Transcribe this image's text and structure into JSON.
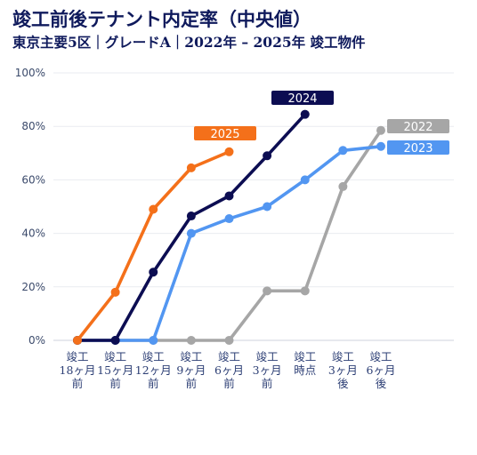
{
  "header": {
    "title": "竣工前後テナント内定率（中央値）",
    "subtitle": "東京主要5区｜グレードA｜2022年 – 2025年 竣工物件"
  },
  "chart_data": {
    "type": "line",
    "title": "竣工前後テナント内定率（中央値）",
    "subtitle": "東京主要5区｜グレードA｜2022年 – 2025年 竣工物件",
    "xlabel": "",
    "ylabel": "",
    "categories": [
      [
        "竣工",
        "18ヶ月",
        "前"
      ],
      [
        "竣工",
        "15ヶ月",
        "前"
      ],
      [
        "竣工",
        "12ヶ月",
        "前"
      ],
      [
        "竣工",
        "9ヶ月",
        "前"
      ],
      [
        "竣工",
        "6ヶ月",
        "前"
      ],
      [
        "竣工",
        "3ヶ月",
        "前"
      ],
      [
        "竣工",
        "時点"
      ],
      [
        "竣工",
        "3ヶ月",
        "後"
      ],
      [
        "竣工",
        "6ヶ月",
        "後"
      ]
    ],
    "y_ticks": [
      "0%",
      "20%",
      "40%",
      "60%",
      "80%",
      "100%"
    ],
    "ylim": [
      0,
      100
    ],
    "grid": true,
    "legend": "direct labels",
    "series": [
      {
        "name": "2022",
        "color": "#a6a6a6",
        "values": [
          0,
          0,
          0,
          0,
          0,
          18.5,
          18.5,
          57.5,
          78.5
        ]
      },
      {
        "name": "2023",
        "color": "#5296f1",
        "values": [
          0,
          0,
          0,
          40,
          45.5,
          50,
          60,
          71,
          72.5
        ]
      },
      {
        "name": "2024",
        "color": "#0c0d52",
        "values": [
          0,
          0,
          25.5,
          46.5,
          54,
          69,
          84.5,
          null,
          null
        ]
      },
      {
        "name": "2025",
        "color": "#f4701a",
        "values": [
          0,
          18,
          49,
          64.5,
          70.5,
          null,
          null,
          null,
          null
        ]
      }
    ]
  }
}
